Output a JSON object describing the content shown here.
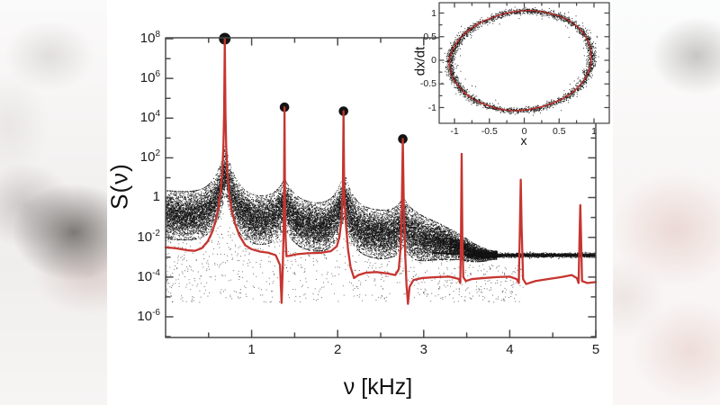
{
  "figure": {
    "kind": "power-spectrum figure with phase-portrait inset",
    "colors": {
      "curve_red": "#c63530",
      "data_black": "#131313",
      "frame_grey": "#4b4b4b",
      "panel_bg": "#ffffff"
    }
  },
  "chart_data": [
    {
      "name": "main-spectrum",
      "type": "scatter",
      "title": "",
      "xlabel": "ν [kHz]",
      "ylabel": "S(ν)",
      "xlim": [
        0,
        5
      ],
      "x_major_ticks": [
        1,
        2,
        3,
        4,
        5
      ],
      "x_major_tick_labels": [
        "1",
        "2",
        "3",
        "4",
        "5"
      ],
      "x_minor_step": 0.5,
      "y_scale": "log",
      "y_exp_range": [
        -7.1,
        8
      ],
      "y_labeled_exponents": [
        8,
        6,
        4,
        2,
        0,
        -2,
        -4,
        -6
      ],
      "grid": false,
      "legend": "none",
      "fundamental_kHz": 0.69,
      "harmonics_kHz": [
        0.69,
        1.38,
        2.07,
        2.76,
        3.44,
        4.13,
        4.82
      ],
      "delta_peak_markers": [
        {
          "nu": 0.688,
          "log10S": 8.0
        },
        {
          "nu": 1.382,
          "log10S": 4.55
        },
        {
          "nu": 2.068,
          "log10S": 4.35
        },
        {
          "nu": 2.757,
          "log10S": 2.95
        }
      ],
      "theory_curve_log10S": [
        [
          0,
          -2.5
        ],
        [
          0.12,
          -2.55
        ],
        [
          0.25,
          -2.65
        ],
        [
          0.34,
          -2.68
        ],
        [
          0.42,
          -2.55
        ],
        [
          0.49,
          -2.2
        ],
        [
          0.54,
          -1.75
        ],
        [
          0.58,
          -1.2
        ],
        [
          0.61,
          -0.6
        ],
        [
          0.64,
          0.3
        ],
        [
          0.66,
          1.4
        ],
        [
          0.672,
          2.6
        ],
        [
          0.68,
          4.2
        ],
        [
          0.688,
          8.0
        ],
        [
          0.696,
          4.2
        ],
        [
          0.704,
          2.6
        ],
        [
          0.716,
          1.4
        ],
        [
          0.736,
          0.3
        ],
        [
          0.766,
          -0.6
        ],
        [
          0.806,
          -1.3
        ],
        [
          0.856,
          -1.9
        ],
        [
          0.926,
          -2.4
        ],
        [
          1.0,
          -2.6
        ],
        [
          1.1,
          -2.72
        ],
        [
          1.2,
          -2.78
        ],
        [
          1.28,
          -2.9
        ],
        [
          1.33,
          -3.4
        ],
        [
          1.348,
          -5.3
        ],
        [
          1.36,
          -3.8
        ],
        [
          1.37,
          -2.0
        ],
        [
          1.376,
          -0.3
        ],
        [
          1.382,
          4.55
        ],
        [
          1.388,
          -0.3
        ],
        [
          1.395,
          -2.0
        ],
        [
          1.405,
          -2.95
        ],
        [
          1.44,
          -2.93
        ],
        [
          1.52,
          -2.85
        ],
        [
          1.65,
          -2.8
        ],
        [
          1.8,
          -2.78
        ],
        [
          1.92,
          -2.7
        ],
        [
          1.99,
          -2.45
        ],
        [
          2.02,
          -2.0
        ],
        [
          2.045,
          -1.1
        ],
        [
          2.06,
          0.2
        ],
        [
          2.068,
          4.35
        ],
        [
          2.076,
          0.2
        ],
        [
          2.095,
          -1.3
        ],
        [
          2.12,
          -2.6
        ],
        [
          2.15,
          -3.5
        ],
        [
          2.19,
          -4.05
        ],
        [
          2.24,
          -3.9
        ],
        [
          2.33,
          -3.78
        ],
        [
          2.45,
          -3.75
        ],
        [
          2.58,
          -3.82
        ],
        [
          2.67,
          -3.9
        ],
        [
          2.71,
          -3.6
        ],
        [
          2.73,
          -2.6
        ],
        [
          2.745,
          -0.5
        ],
        [
          2.757,
          2.95
        ],
        [
          2.769,
          -0.5
        ],
        [
          2.785,
          -2.9
        ],
        [
          2.8,
          -4.4
        ],
        [
          2.817,
          -5.35
        ],
        [
          2.835,
          -4.5
        ],
        [
          2.88,
          -4.15
        ],
        [
          2.98,
          -4.05
        ],
        [
          3.15,
          -4.0
        ],
        [
          3.3,
          -3.98
        ],
        [
          3.41,
          -4.1
        ],
        [
          3.425,
          -4.3
        ],
        [
          3.433,
          -2.0
        ],
        [
          3.441,
          2.2
        ],
        [
          3.449,
          -2.0
        ],
        [
          3.46,
          -4.0
        ],
        [
          3.49,
          -4.2
        ],
        [
          3.56,
          -4.1
        ],
        [
          3.7,
          -4.05
        ],
        [
          3.85,
          -4.0
        ],
        [
          4.0,
          -3.98
        ],
        [
          4.08,
          -4.1
        ],
        [
          4.105,
          -4.3
        ],
        [
          4.118,
          -1.5
        ],
        [
          4.128,
          0.9
        ],
        [
          4.138,
          -1.5
        ],
        [
          4.155,
          -4.1
        ],
        [
          4.19,
          -4.35
        ],
        [
          4.3,
          -4.2
        ],
        [
          4.45,
          -4.1
        ],
        [
          4.6,
          -4.0
        ],
        [
          4.72,
          -3.9
        ],
        [
          4.78,
          -4.05
        ],
        [
          4.8,
          -4.3
        ],
        [
          4.812,
          -1.8
        ],
        [
          4.82,
          -0.38
        ],
        [
          4.828,
          -1.8
        ],
        [
          4.84,
          -4.2
        ],
        [
          4.9,
          -4.3
        ],
        [
          5.0,
          -4.25
        ]
      ],
      "measured_tail_log10S": [
        [
          3.1,
          -2.78
        ],
        [
          3.5,
          -2.87
        ],
        [
          4.0,
          -2.9
        ],
        [
          5.0,
          -2.9
        ]
      ],
      "noise_cloud": {
        "base_log10": [
          -0.85,
          -0.42
        ],
        "bumps": [
          {
            "nu": 0.69,
            "a": 2.6,
            "w": 0.12
          },
          {
            "nu": 1.38,
            "a": 1.2,
            "w": 0.12
          },
          {
            "nu": 2.07,
            "a": 1.9,
            "w": 0.1
          },
          {
            "nu": 2.76,
            "a": 0.85,
            "w": 0.09
          },
          {
            "nu": 3.44,
            "a": 0.2,
            "w": 0.08
          }
        ],
        "sigma_decades": 0.58,
        "n_points": 23000,
        "nu_max": 3.85,
        "tail_level_log10": -2.88,
        "tail_points": 2600,
        "sparse_floor_points": 950,
        "sparse_floor_min_log10": -5.25
      }
    },
    {
      "name": "inset-phase-portrait",
      "type": "scatter",
      "title": "",
      "xlabel": "x",
      "ylabel": "dx/dt",
      "xlim": [
        -1.22,
        1.22
      ],
      "ylim": [
        -1.33,
        1.22
      ],
      "tick_values": [
        -1,
        -0.5,
        0,
        0.5,
        1
      ],
      "tick_labels": [
        "-1",
        "-0.5",
        "0",
        "0.5",
        "1"
      ],
      "minor_tick_step": 0.25,
      "grid": false,
      "limit_cycle_points": [
        [
          0.96,
          0.05
        ],
        [
          0.93,
          0.35
        ],
        [
          0.82,
          0.62
        ],
        [
          0.65,
          0.83
        ],
        [
          0.45,
          0.96
        ],
        [
          0.2,
          1.04
        ],
        [
          0.0,
          1.05
        ],
        [
          -0.25,
          1.0
        ],
        [
          -0.5,
          0.88
        ],
        [
          -0.72,
          0.72
        ],
        [
          -0.9,
          0.5
        ],
        [
          -1.0,
          0.3
        ],
        [
          -1.06,
          0.1
        ],
        [
          -1.07,
          -0.12
        ],
        [
          -1.02,
          -0.38
        ],
        [
          -0.9,
          -0.62
        ],
        [
          -0.72,
          -0.83
        ],
        [
          -0.5,
          -0.97
        ],
        [
          -0.29,
          -1.05
        ],
        [
          -0.05,
          -1.06
        ],
        [
          0.2,
          -1.0
        ],
        [
          0.45,
          -0.88
        ],
        [
          0.67,
          -0.7
        ],
        [
          0.84,
          -0.45
        ],
        [
          0.93,
          -0.2
        ]
      ],
      "noise_sigma": 0.032,
      "n_noise_points": 2300,
      "n_outlier_points": 160
    }
  ]
}
